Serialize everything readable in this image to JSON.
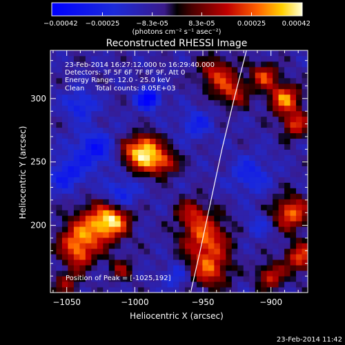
{
  "chart_data": {
    "type": "heatmap",
    "title": "Reconstructed RHESSI Image",
    "xlabel": "Heliocentric X (arcsec)",
    "ylabel": "Heliocentric Y (arcsec)",
    "xlim": [
      -1062,
      -873
    ],
    "ylim": [
      147,
      338
    ],
    "x_ticks": [
      -1050,
      -1000,
      -950,
      -900
    ],
    "y_ticks": [
      200,
      250,
      300
    ],
    "colorbar": {
      "min": -0.00042,
      "max": 0.00042,
      "ticks": [
        -0.00042,
        -0.00025,
        -8.3e-05,
        8.3e-05,
        0.00025,
        0.00042
      ],
      "tick_labels": [
        "-0.00042",
        "-0.00025",
        "-8.3e-05",
        "8.3e-05",
        "0.00025",
        "0.00042"
      ],
      "units": "(photons cm⁻² s⁻¹ asec⁻²)"
    },
    "info_lines": [
      "23-Feb-2014 16:27:12.000 to 16:29:40.000",
      "Detectors: 3F 5F 6F 7F 8F 9F, Att 0",
      "Energy Range: 12.0 - 25.0 keV",
      "Clean     Total counts: 8.05E+03"
    ],
    "peak_label": "Position of Peak = [-1025,192]",
    "peak": {
      "x": -1025,
      "y": 192
    },
    "limb_curve": [
      [
        -959,
        147
      ],
      [
        -952,
        180
      ],
      [
        -944,
        220
      ],
      [
        -936,
        260
      ],
      [
        -927,
        300
      ],
      [
        -918,
        338
      ]
    ],
    "sources": [
      {
        "x": -1028,
        "y": 199,
        "r": 12,
        "v": 0.00036
      },
      {
        "x": -1015,
        "y": 205,
        "r": 8,
        "v": 0.0003
      },
      {
        "x": -1045,
        "y": 187,
        "r": 9,
        "v": 0.00025
      },
      {
        "x": -1040,
        "y": 175,
        "r": 7,
        "v": 0.00022
      },
      {
        "x": -1000,
        "y": 258,
        "r": 8,
        "v": 0.0003
      },
      {
        "x": -990,
        "y": 252,
        "r": 8,
        "v": 0.00028
      },
      {
        "x": -978,
        "y": 250,
        "r": 7,
        "v": 0.00026
      },
      {
        "x": -990,
        "y": 265,
        "r": 6,
        "v": 0.00022
      },
      {
        "x": -940,
        "y": 320,
        "r": 9,
        "v": 0.00027
      },
      {
        "x": -928,
        "y": 305,
        "r": 8,
        "v": 0.00026
      },
      {
        "x": -890,
        "y": 300,
        "r": 8,
        "v": 0.00038
      },
      {
        "x": -905,
        "y": 318,
        "r": 7,
        "v": 0.0003
      },
      {
        "x": -882,
        "y": 280,
        "r": 7,
        "v": 0.0003
      },
      {
        "x": -885,
        "y": 210,
        "r": 9,
        "v": 0.00036
      },
      {
        "x": -878,
        "y": 175,
        "r": 8,
        "v": 0.00032
      },
      {
        "x": -900,
        "y": 160,
        "r": 7,
        "v": 0.00028
      },
      {
        "x": -948,
        "y": 190,
        "r": 12,
        "v": 0.00033
      },
      {
        "x": -945,
        "y": 165,
        "r": 10,
        "v": 0.0003
      },
      {
        "x": -958,
        "y": 210,
        "r": 8,
        "v": 0.00022
      },
      {
        "x": -1050,
        "y": 155,
        "r": 7,
        "v": 0.0002
      },
      {
        "x": -1010,
        "y": 165,
        "r": 6,
        "v": 0.00018
      },
      {
        "x": -1030,
        "y": 260,
        "r": 10,
        "v": -0.00025
      },
      {
        "x": -1050,
        "y": 240,
        "r": 9,
        "v": -0.00022
      },
      {
        "x": -1040,
        "y": 295,
        "r": 8,
        "v": -0.0002
      },
      {
        "x": -990,
        "y": 300,
        "r": 6,
        "v": -0.00035
      },
      {
        "x": -1010,
        "y": 225,
        "r": 8,
        "v": -0.0002
      },
      {
        "x": -955,
        "y": 280,
        "r": 8,
        "v": -0.00018
      },
      {
        "x": -915,
        "y": 240,
        "r": 10,
        "v": -0.00018
      },
      {
        "x": -910,
        "y": 200,
        "r": 7,
        "v": -0.00012
      },
      {
        "x": -970,
        "y": 160,
        "r": 7,
        "v": -0.00015
      }
    ]
  },
  "footer": {
    "timestamp": "23-Feb-2014 11:42"
  }
}
